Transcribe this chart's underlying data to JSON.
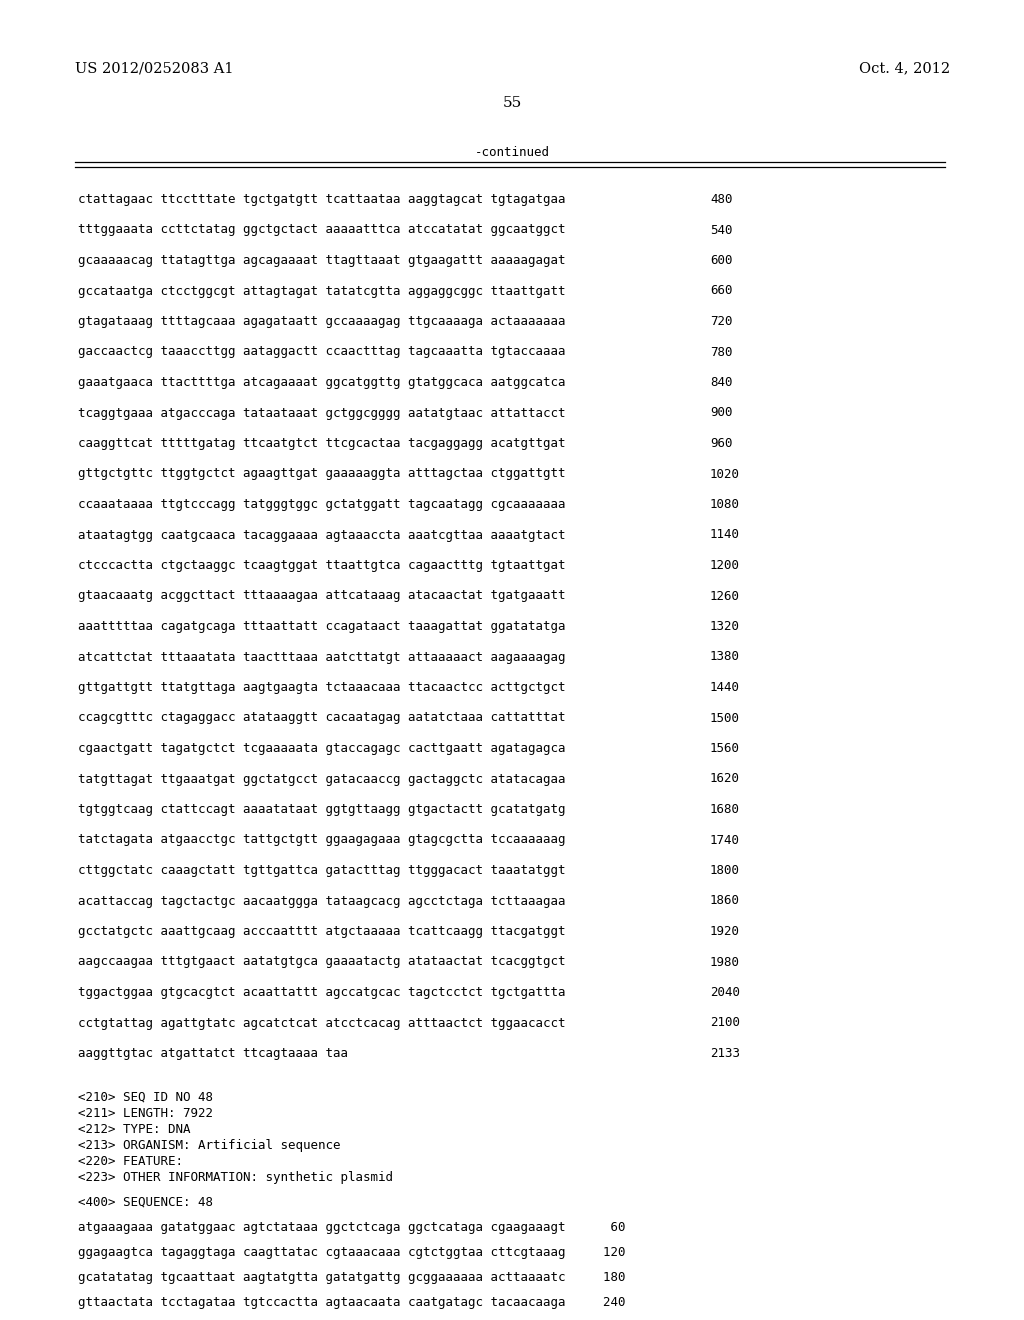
{
  "header_left": "US 2012/0252083 A1",
  "header_right": "Oct. 4, 2012",
  "page_number": "55",
  "continued_label": "-continued",
  "background_color": "#ffffff",
  "text_color": "#000000",
  "header_font_size": 10.5,
  "page_num_font_size": 11,
  "seq_font_size": 9.0,
  "meta_font_size": 9.0,
  "sequence_lines": [
    [
      "ctattagaac ttcctttate tgctgatgtt tcattaataa aaggtagcat tgtagatgaa",
      "480"
    ],
    [
      "tttggaaata ccttctatag ggctgctact aaaaatttca atccatatat ggcaatggct",
      "540"
    ],
    [
      "gcaaaaacag ttatagttga agcagaaaat ttagttaaat gtgaagattt aaaaagagat",
      "600"
    ],
    [
      "gccataatga ctcctggcgt attagtagat tatatcgtta aggaggcggc ttaattgatt",
      "660"
    ],
    [
      "gtagataaag ttttagcaaa agagataatt gccaaaagag ttgcaaaaga actaaaaaaa",
      "720"
    ],
    [
      "gaccaactcg taaaccttgg aataggactt ccaactttag tagcaaatta tgtaccaaaa",
      "780"
    ],
    [
      "gaaatgaaca ttacttttga atcagaaaat ggcatggttg gtatggcaca aatggcatca",
      "840"
    ],
    [
      "tcaggtgaaa atgacccaga tataataaat gctggcgggg aatatgtaac attattacct",
      "900"
    ],
    [
      "caaggttcat tttttgatag ttcaatgtct ttcgcactaa tacgaggagg acatgttgat",
      "960"
    ],
    [
      "gttgctgttc ttggtgctct agaagttgat gaaaaaggta atttagctaa ctggattgtt",
      "1020"
    ],
    [
      "ccaaataaaa ttgtcccagg tatgggtggc gctatggatt tagcaatagg cgcaaaaaaa",
      "1080"
    ],
    [
      "ataatagtgg caatgcaaca tacaggaaaa agtaaaccta aaatcgttaa aaaatgtact",
      "1140"
    ],
    [
      "ctcccactta ctgctaaggc tcaagtggat ttaattgtca cagaactttg tgtaattgat",
      "1200"
    ],
    [
      "gtaacaaatg acggcttact tttaaaagaa attcataaag atacaactat tgatgaaatt",
      "1260"
    ],
    [
      "aaatttttaa cagatgcaga tttaattatt ccagataact taaagattat ggatatatga",
      "1320"
    ],
    [
      "atcattctat tttaaatata taactttaaa aatcttatgt attaaaaact aagaaaagag",
      "1380"
    ],
    [
      "gttgattgtt ttatgttaga aagtgaagta tctaaacaaa ttacaactcc acttgctgct",
      "1440"
    ],
    [
      "ccagcgtttc ctagaggacc atataaggtt cacaatagag aatatctaaa cattatttat",
      "1500"
    ],
    [
      "cgaactgatt tagatgctct tcgaaaaata gtaccagagc cacttgaatt agatagagca",
      "1560"
    ],
    [
      "tatgttagat ttgaaatgat ggctatgcct gatacaaccg gactaggctc atatacagaa",
      "1620"
    ],
    [
      "tgtggtcaag ctattccagt aaaatataat ggtgttaagg gtgactactt gcatatgatg",
      "1680"
    ],
    [
      "tatctagata atgaacctgc tattgctgtt ggaagagaaa gtagcgctta tccaaaaaag",
      "1740"
    ],
    [
      "cttggctatc caaagctatt tgttgattca gatactttag ttgggacact taaatatggt",
      "1800"
    ],
    [
      "acattaccag tagctactgc aacaatggga tataagcacg agcctctaga tcttaaagaa",
      "1860"
    ],
    [
      "gcctatgctc aaattgcaag acccaatttt atgctaaaaa tcattcaagg ttacgatggt",
      "1920"
    ],
    [
      "aagccaagaa tttgtgaact aatatgtgca gaaaatactg atataactat tcacggtgct",
      "1980"
    ],
    [
      "tggactggaa gtgcacgtct acaattattt agccatgcac tagctcctct tgctgattta",
      "2040"
    ],
    [
      "cctgtattag agattgtatc agcatctcat atcctcacag atttaactct tggaacacct",
      "2100"
    ],
    [
      "aaggttgtac atgattatct ttcagtaaaa taa",
      "2133"
    ]
  ],
  "metadata_block": [
    "<210> SEQ ID NO 48",
    "<211> LENGTH: 7922",
    "<212> TYPE: DNA",
    "<213> ORGANISM: Artificial sequence",
    "<220> FEATURE:",
    "<223> OTHER INFORMATION: synthetic plasmid",
    "",
    "<400> SEQUENCE: 48",
    "",
    "atgaaagaaa gatatggaac agtctataaa ggctctcaga ggctcataga cgaagaaagt      60",
    "",
    "ggagaagtca tagaggtaga caagttatac cgtaaacaaa cgtctggtaa cttcgtaaag     120",
    "",
    "gcatatatag tgcaattaat aagtatgtta gatatgattg gcggaaaaaa acttaaaatc     180",
    "",
    "gttaactata tcctagataa tgtccactta agtaacaata caatgatagc tacaacaaga     240"
  ]
}
